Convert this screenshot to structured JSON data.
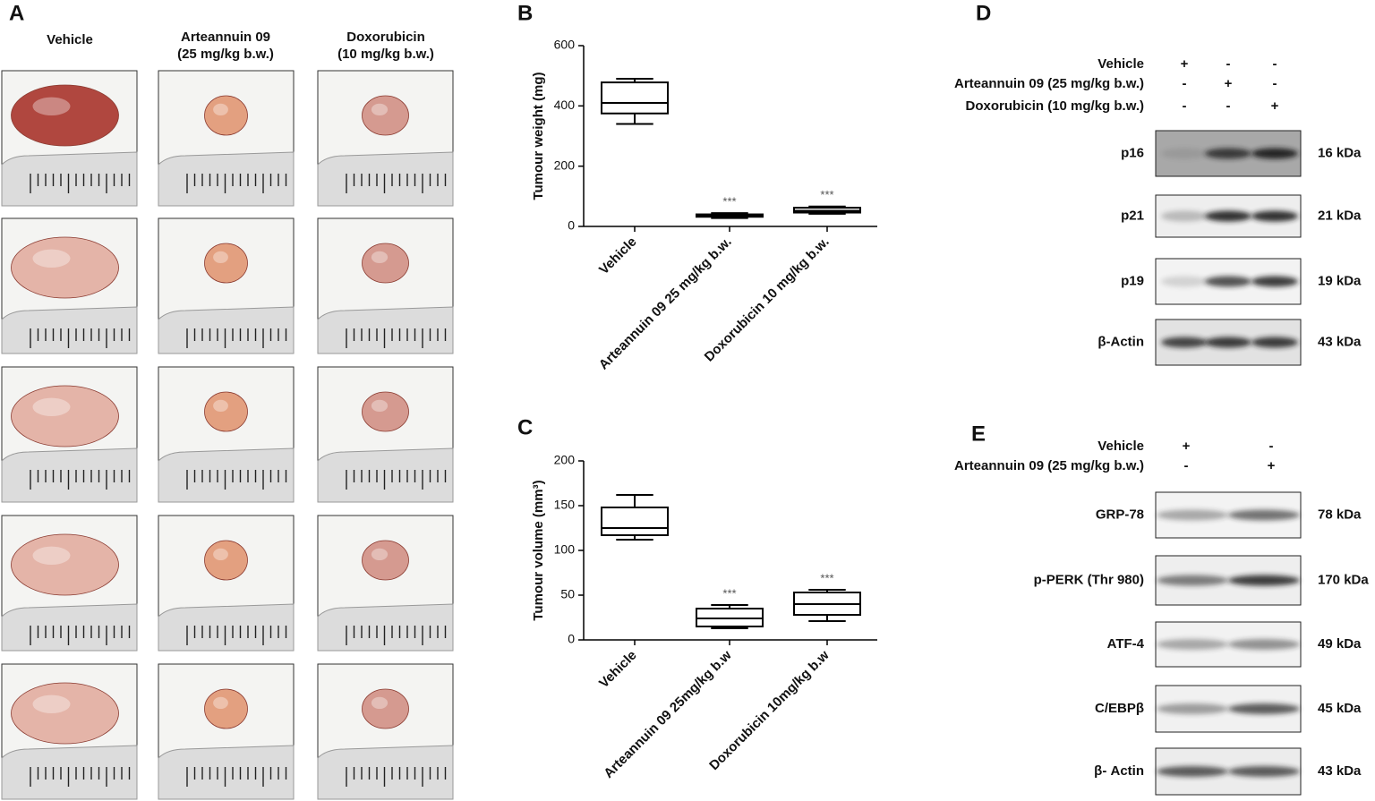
{
  "panel_labels": [
    "A",
    "B",
    "C",
    "D",
    "E"
  ],
  "panel_a": {
    "columns": [
      [
        "Vehicle"
      ],
      [
        "Arteannuin 09",
        "(25 mg/kg b.w.)"
      ],
      [
        "Doxorubicin",
        "(10 mg/kg b.w.)"
      ]
    ]
  },
  "chart_data": [
    {
      "type": "box",
      "ylabel": "Tumour weight (mg)",
      "categories": [
        "Vehicle",
        "Arteannuin 09 25 mg/kg b.w.",
        "Doxorubicin 10 mg/kg b.w."
      ],
      "boxes": [
        {
          "min": 340,
          "q1": 375,
          "median": 410,
          "q3": 478,
          "max": 490
        },
        {
          "min": 28,
          "q1": 32,
          "median": 36,
          "q3": 40,
          "max": 44
        },
        {
          "min": 42,
          "q1": 46,
          "median": 52,
          "q3": 62,
          "max": 66
        }
      ],
      "significance": [
        null,
        "***",
        "***"
      ],
      "color": "#000000",
      "ylim": [
        0,
        600
      ],
      "yticks": [
        0,
        200,
        400,
        600
      ]
    },
    {
      "type": "box",
      "ylabel": "Tumour volume (mm³)",
      "categories": [
        "Vehicle",
        "Arteannuin 09 25mg/kg b.w",
        "Doxorubicin 10mg/kg b.w"
      ],
      "boxes": [
        {
          "min": 112,
          "q1": 117,
          "median": 125,
          "q3": 148,
          "max": 162
        },
        {
          "min": 13,
          "q1": 15,
          "median": 24,
          "q3": 35,
          "max": 39
        },
        {
          "min": 21,
          "q1": 28,
          "median": 40,
          "q3": 53,
          "max": 56
        }
      ],
      "significance": [
        null,
        "***",
        "***"
      ],
      "color": "#000000",
      "ylim": [
        0,
        200
      ],
      "yticks": [
        0,
        50,
        100,
        150,
        200
      ]
    }
  ],
  "panel_d": {
    "treatments": [
      {
        "label": "Vehicle",
        "signs": [
          "+",
          "-",
          "-"
        ]
      },
      {
        "label": "Arteannuin 09 (25 mg/kg b.w.)",
        "signs": [
          "-",
          "+",
          "-"
        ]
      },
      {
        "label": "Doxorubicin (10 mg/kg b.w.)",
        "signs": [
          "-",
          "-",
          "+"
        ]
      }
    ],
    "blots": [
      {
        "protein": "p16",
        "size": "16 kDa"
      },
      {
        "protein": "p21",
        "size": "21 kDa"
      },
      {
        "protein": "p19",
        "size": "19 kDa"
      },
      {
        "protein": "β-Actin",
        "size": "43 kDa"
      }
    ]
  },
  "panel_e": {
    "treatments": [
      {
        "label": "Vehicle",
        "signs": [
          "+",
          "-"
        ]
      },
      {
        "label": "Arteannuin 09 (25 mg/kg b.w.)",
        "signs": [
          "-",
          "+"
        ]
      }
    ],
    "blots": [
      {
        "protein": "GRP-78",
        "size": "78 kDa"
      },
      {
        "protein": "p-PERK (Thr 980)",
        "size": "170 kDa"
      },
      {
        "protein": "ATF-4",
        "size": "49 kDa"
      },
      {
        "protein": "C/EBPβ",
        "size": "45 kDa"
      },
      {
        "protein": "β- Actin",
        "size": "43 kDa"
      }
    ]
  }
}
